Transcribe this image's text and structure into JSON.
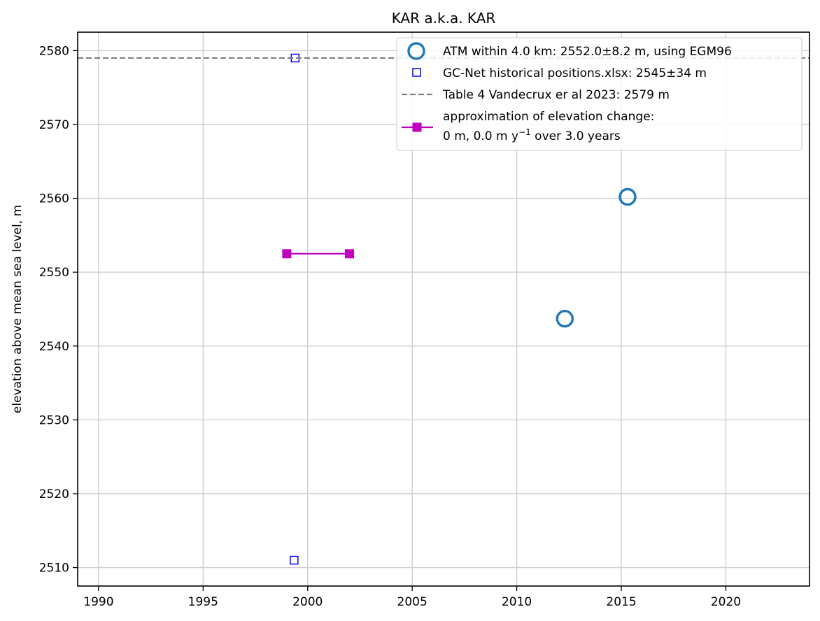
{
  "chart_data": {
    "type": "scatter",
    "title": "KAR a.k.a. KAR",
    "xlabel": "",
    "ylabel": "elevation above mean sea level, m",
    "xlim": [
      1989,
      2024
    ],
    "ylim": [
      2507.5,
      2582.5
    ],
    "x_ticks": [
      1990,
      1995,
      2000,
      2005,
      2010,
      2015,
      2020
    ],
    "y_ticks": [
      2510,
      2520,
      2530,
      2540,
      2550,
      2560,
      2570,
      2580
    ],
    "grid": true,
    "legend_position": "top-right",
    "series": [
      {
        "name": "ATM within 4.0 km: 2552.0±8.2 m, using EGM96",
        "kind": "marker-open-circle",
        "color": "#1f77b4",
        "points": [
          {
            "x": 2012.3,
            "y": 2543.7
          },
          {
            "x": 2015.3,
            "y": 2560.2
          }
        ]
      },
      {
        "name": "GC-Net historical positions.xlsx: 2545±34 m",
        "kind": "marker-open-square",
        "color": "#0000ff",
        "points": [
          {
            "x": 1999.4,
            "y": 2579.0
          },
          {
            "x": 1999.35,
            "y": 2511.0
          }
        ]
      },
      {
        "name": "Table 4 Vandecrux er al 2023: 2579 m",
        "kind": "dashed-hline",
        "color": "#808080",
        "y": 2579
      },
      {
        "name": "approximation of elevation change:",
        "name_line2_prefix": "0 m, 0.0 m y",
        "name_line2_sup": "−1",
        "name_line2_suffix": " over 3.0 years",
        "kind": "line-square",
        "color": "#bf00bf",
        "points": [
          {
            "x": 1999.0,
            "y": 2552.5
          },
          {
            "x": 2002.0,
            "y": 2552.5
          }
        ]
      }
    ]
  }
}
